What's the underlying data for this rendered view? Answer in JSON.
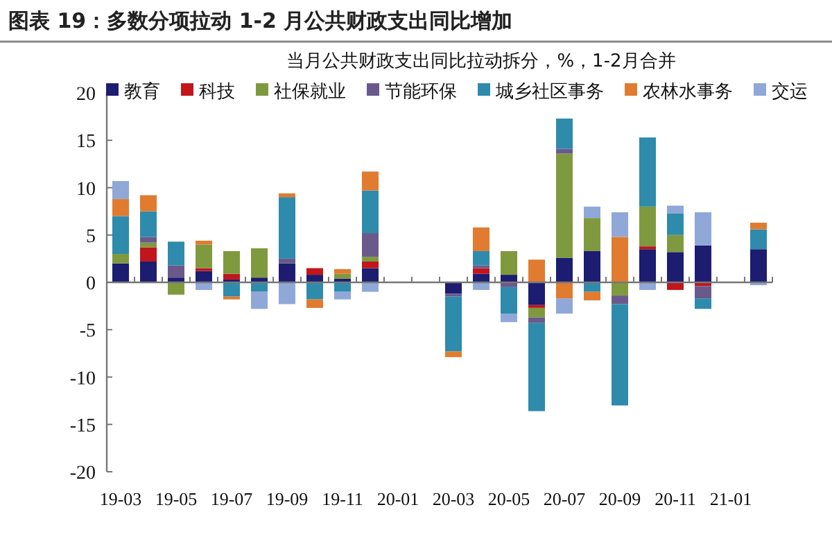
{
  "chart_data": {
    "type": "bar",
    "stacked": true,
    "title": "图表 19：多数分项拉动 1-2 月公共财政支出同比增加",
    "subtitle": "当月公共财政支出同比拉动拆分，%，1-2月合并",
    "categories": [
      "19-03",
      null,
      "19-05",
      null,
      "19-07",
      null,
      "19-09",
      null,
      "19-11",
      null,
      "20-01",
      null,
      "20-03",
      null,
      "20-05",
      null,
      "20-07",
      null,
      "20-09",
      null,
      "20-11",
      null,
      "21-01",
      null
    ],
    "series": [
      {
        "name": "教育",
        "color": "#1c1c70",
        "values": [
          2,
          2.2,
          0.5,
          1.2,
          0.3,
          0.5,
          2,
          0.8,
          0.4,
          1.5,
          null,
          null,
          -1.2,
          0.9,
          0.8,
          -2.4,
          2.6,
          3.3,
          null,
          3.5,
          3.2,
          3.9,
          null,
          3.5
        ]
      },
      {
        "name": "科技",
        "color": "#c0161c",
        "values": [
          null,
          1.5,
          null,
          0.3,
          0.6,
          null,
          null,
          0.7,
          null,
          0.7,
          null,
          null,
          null,
          0.6,
          null,
          -0.3,
          null,
          null,
          null,
          0.3,
          -0.8,
          -0.4,
          null,
          null
        ]
      },
      {
        "name": "社保就业",
        "color": "#7f9a3e",
        "values": [
          1,
          0.5,
          -1.3,
          2.5,
          2.4,
          3.1,
          null,
          null,
          0.5,
          0.5,
          null,
          null,
          null,
          null,
          2.5,
          -1,
          11,
          3.5,
          -1.4,
          4.2,
          1.8,
          null,
          null,
          null
        ]
      },
      {
        "name": "节能环保",
        "color": "#6a5a8c",
        "values": [
          null,
          0.6,
          1.3,
          null,
          null,
          null,
          0.5,
          null,
          null,
          2.5,
          null,
          null,
          -0.3,
          0.3,
          -0.5,
          -0.6,
          0.5,
          null,
          -0.9,
          null,
          null,
          -1.3,
          null,
          null
        ]
      },
      {
        "name": "城乡社区事务",
        "color": "#2e8bab",
        "values": [
          4,
          2.7,
          2.5,
          null,
          -1.5,
          -1,
          6.5,
          -1.8,
          -1,
          4.5,
          null,
          null,
          -5.8,
          1.5,
          -2.8,
          -9.3,
          3.2,
          -1,
          -10.7,
          7.3,
          2.3,
          -1.1,
          null,
          2.1
        ]
      },
      {
        "name": "农林水事务",
        "color": "#e07b30",
        "values": [
          1.8,
          1.7,
          null,
          0.4,
          -0.3,
          null,
          0.4,
          -0.9,
          0.5,
          2,
          null,
          null,
          -0.6,
          2.5,
          null,
          2.4,
          -1.7,
          -0.9,
          4.8,
          null,
          null,
          null,
          null,
          0.7
        ]
      },
      {
        "name": "交运",
        "color": "#8fa8d8",
        "values": [
          1.9,
          null,
          null,
          -0.8,
          null,
          -1.8,
          -2.3,
          null,
          -0.8,
          -1,
          null,
          null,
          null,
          -0.8,
          -0.9,
          null,
          -1.6,
          1.2,
          2.6,
          -0.8,
          0.8,
          3.5,
          null,
          -0.3
        ]
      }
    ],
    "ylim": [
      -20,
      20
    ],
    "yticks": [
      -20,
      -15,
      -10,
      -5,
      0,
      5,
      10,
      15,
      20
    ],
    "legend": "top"
  }
}
